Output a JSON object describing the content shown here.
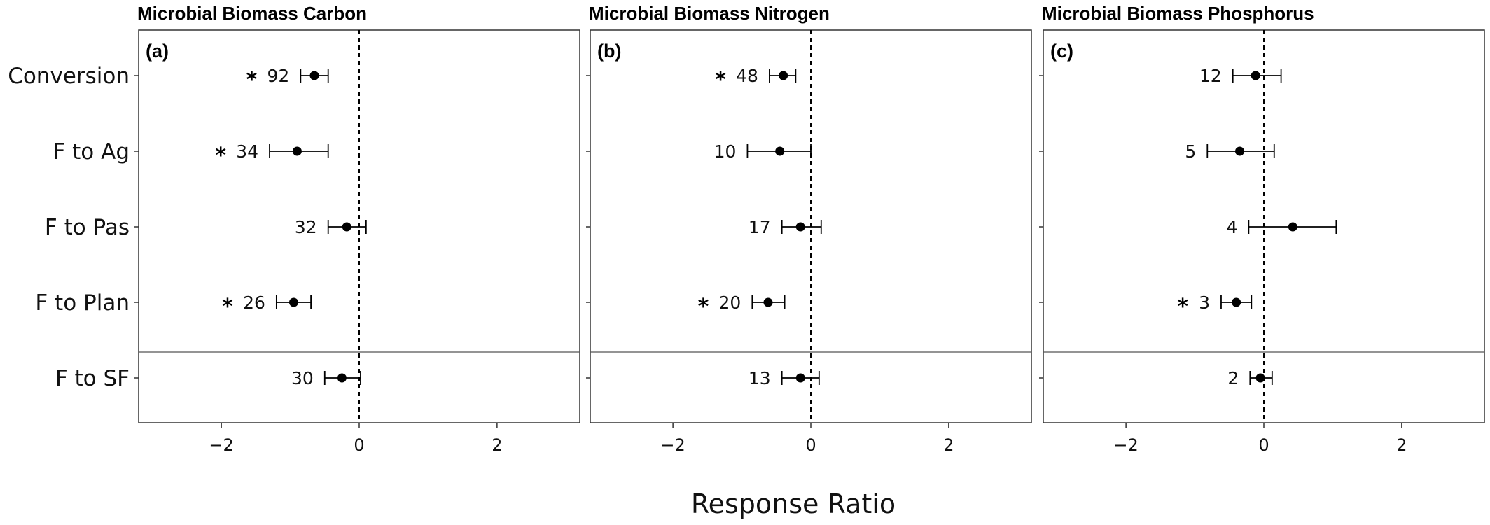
{
  "chart_data": {
    "type": "forest",
    "categories": [
      "Conversion",
      "F to Ag",
      "F to Pas",
      "F to Plan",
      "F to SF"
    ],
    "xlabel": "Response Ratio",
    "xlim": [
      -3.2,
      3.2
    ],
    "xticks": [
      -2,
      0,
      2
    ],
    "reference_line": 0,
    "separator_after_category": "F to Plan",
    "panels": [
      {
        "title": "Microbial Biomass Carbon",
        "tag": "(a)",
        "points": [
          {
            "category": "Conversion",
            "estimate": -0.65,
            "ci": [
              -0.85,
              -0.45
            ],
            "n": "92",
            "significant": true
          },
          {
            "category": "F to Ag",
            "estimate": -0.9,
            "ci": [
              -1.3,
              -0.45
            ],
            "n": "34",
            "significant": true
          },
          {
            "category": "F to Pas",
            "estimate": -0.18,
            "ci": [
              -0.45,
              0.1
            ],
            "n": "32",
            "significant": false
          },
          {
            "category": "F to Plan",
            "estimate": -0.95,
            "ci": [
              -1.2,
              -0.7
            ],
            "n": "26",
            "significant": true
          },
          {
            "category": "F to SF",
            "estimate": -0.25,
            "ci": [
              -0.5,
              0.02
            ],
            "n": "30",
            "significant": false
          }
        ]
      },
      {
        "title": "Microbial Biomass Nitrogen",
        "tag": "(b)",
        "points": [
          {
            "category": "Conversion",
            "estimate": -0.4,
            "ci": [
              -0.6,
              -0.22
            ],
            "n": "48",
            "significant": true
          },
          {
            "category": "F to Ag",
            "estimate": -0.45,
            "ci": [
              -0.92,
              0.0
            ],
            "n": "10",
            "significant": false
          },
          {
            "category": "F to Pas",
            "estimate": -0.15,
            "ci": [
              -0.42,
              0.15
            ],
            "n": "17",
            "significant": false
          },
          {
            "category": "F to Plan",
            "estimate": -0.62,
            "ci": [
              -0.85,
              -0.38
            ],
            "n": "20",
            "significant": true
          },
          {
            "category": "F to SF",
            "estimate": -0.15,
            "ci": [
              -0.42,
              0.12
            ],
            "n": "13",
            "significant": false
          }
        ]
      },
      {
        "title": "Microbial Biomass Phosphorus",
        "tag": "(c)",
        "points": [
          {
            "category": "Conversion",
            "estimate": -0.12,
            "ci": [
              -0.45,
              0.25
            ],
            "n": "12",
            "significant": false
          },
          {
            "category": "F to Ag",
            "estimate": -0.35,
            "ci": [
              -0.82,
              0.15
            ],
            "n": "5",
            "significant": false
          },
          {
            "category": "F to Pas",
            "estimate": 0.42,
            "ci": [
              -0.22,
              1.05
            ],
            "n": "4",
            "significant": false
          },
          {
            "category": "F to Plan",
            "estimate": -0.4,
            "ci": [
              -0.62,
              -0.18
            ],
            "n": "3",
            "significant": true
          },
          {
            "category": "F to SF",
            "estimate": -0.05,
            "ci": [
              -0.2,
              0.12
            ],
            "n": "2",
            "significant": false
          }
        ]
      }
    ]
  }
}
